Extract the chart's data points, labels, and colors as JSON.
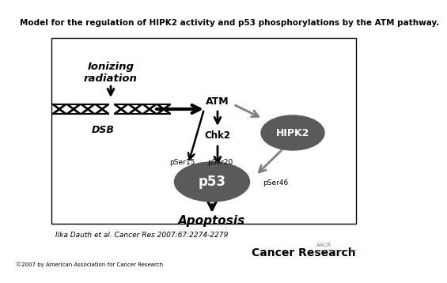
{
  "title": "Model for the regulation of HIPK2 activity and p53 phosphorylations by the ATM pathway.",
  "title_fontsize": 7.8,
  "citation": "Ilka Dauth et al. Cancer Res 2007;67:2274-2279",
  "footer_left": "©2007 by American Association for Cancer Research",
  "footer_right": "Cancer Research",
  "bg_color": "#ffffff",
  "dark_gray": "#5a5a5a",
  "arrow_black": "#000000",
  "arrow_gray": "#808080"
}
